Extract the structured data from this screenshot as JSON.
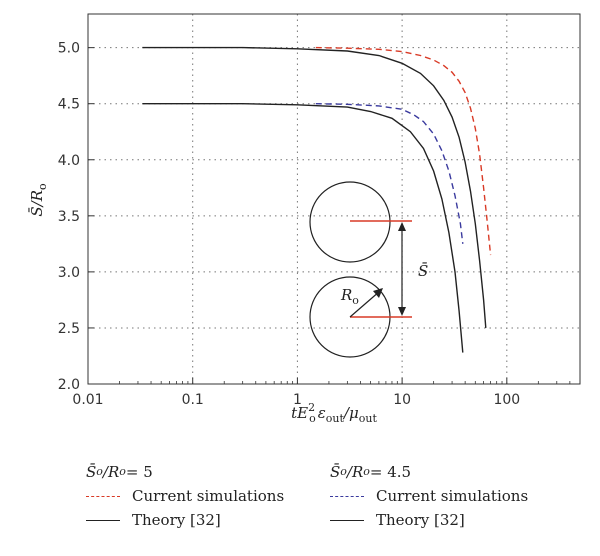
{
  "chart_data": {
    "type": "line",
    "x_scale": "log",
    "xlim": [
      0.01,
      500
    ],
    "ylim": [
      2.0,
      5.3
    ],
    "grid": true,
    "x_ticks": [
      "0.01",
      "0.1",
      "1",
      "10",
      "100"
    ],
    "y_ticks": [
      "2.0",
      "2.5",
      "3.0",
      "3.5",
      "4.0",
      "4.5",
      "5.0"
    ],
    "xlabel": {
      "base": "tE",
      "sup": "2",
      "sub": "o",
      "eps": "ε",
      "eps_sub": "out",
      "slash": "/μ",
      "mu_sub": "out"
    },
    "ylabel": {
      "text": "S̄/R",
      "sub": "o"
    },
    "series": [
      {
        "group": "S̄o/Ro = 5",
        "name": "Current simulations",
        "color": "#d93a26",
        "dash": true,
        "x": [
          1.5,
          3,
          6,
          10,
          15,
          20,
          25,
          30,
          35,
          40,
          45,
          50,
          55,
          60,
          65,
          70
        ],
        "y": [
          5.0,
          4.995,
          4.985,
          4.965,
          4.93,
          4.89,
          4.84,
          4.78,
          4.7,
          4.6,
          4.46,
          4.28,
          4.05,
          3.75,
          3.45,
          3.15
        ]
      },
      {
        "group": "S̄o/Ro = 5",
        "name": "Theory [32]",
        "color": "#222222",
        "dash": false,
        "x": [
          0.033,
          0.1,
          0.3,
          1,
          3,
          6,
          10,
          15,
          20,
          25,
          30,
          35,
          40,
          45,
          50,
          55,
          60,
          63
        ],
        "y": [
          5.0,
          5.0,
          5.0,
          4.99,
          4.97,
          4.93,
          4.86,
          4.77,
          4.66,
          4.53,
          4.38,
          4.2,
          3.98,
          3.72,
          3.43,
          3.1,
          2.75,
          2.5
        ]
      },
      {
        "group": "S̄o/Ro = 4.5",
        "name": "Current simulations",
        "color": "#3a3a9e",
        "dash": true,
        "x": [
          1.5,
          3,
          6,
          10,
          13,
          16,
          20,
          24,
          28,
          32,
          36,
          38
        ],
        "y": [
          4.5,
          4.495,
          4.48,
          4.45,
          4.4,
          4.34,
          4.23,
          4.08,
          3.9,
          3.68,
          3.43,
          3.25
        ]
      },
      {
        "group": "S̄o/Ro = 4.5",
        "name": "Theory [32]",
        "color": "#222222",
        "dash": false,
        "x": [
          0.033,
          0.1,
          0.3,
          1,
          3,
          5,
          8,
          12,
          16,
          20,
          24,
          28,
          32,
          35,
          38
        ],
        "y": [
          4.5,
          4.5,
          4.5,
          4.49,
          4.47,
          4.43,
          4.37,
          4.25,
          4.1,
          3.9,
          3.65,
          3.35,
          3.0,
          2.65,
          2.28
        ]
      }
    ],
    "inset_labels": {
      "radius": "R",
      "radius_sub": "o",
      "distance": "S̄"
    }
  },
  "legend": {
    "left": {
      "head_s": "S̄",
      "head_s_sub": "o",
      "head_r": "/R",
      "head_r_sub": "o",
      "head_rhs": " = 5",
      "sim": "Current simulations",
      "theory": "Theory [32]"
    },
    "right": {
      "head_s": "S̄",
      "head_s_sub": "o",
      "head_r": "/R",
      "head_r_sub": "o",
      "head_rhs": " = 4.5",
      "sim": "Current simulations",
      "theory": "Theory [32]"
    }
  }
}
